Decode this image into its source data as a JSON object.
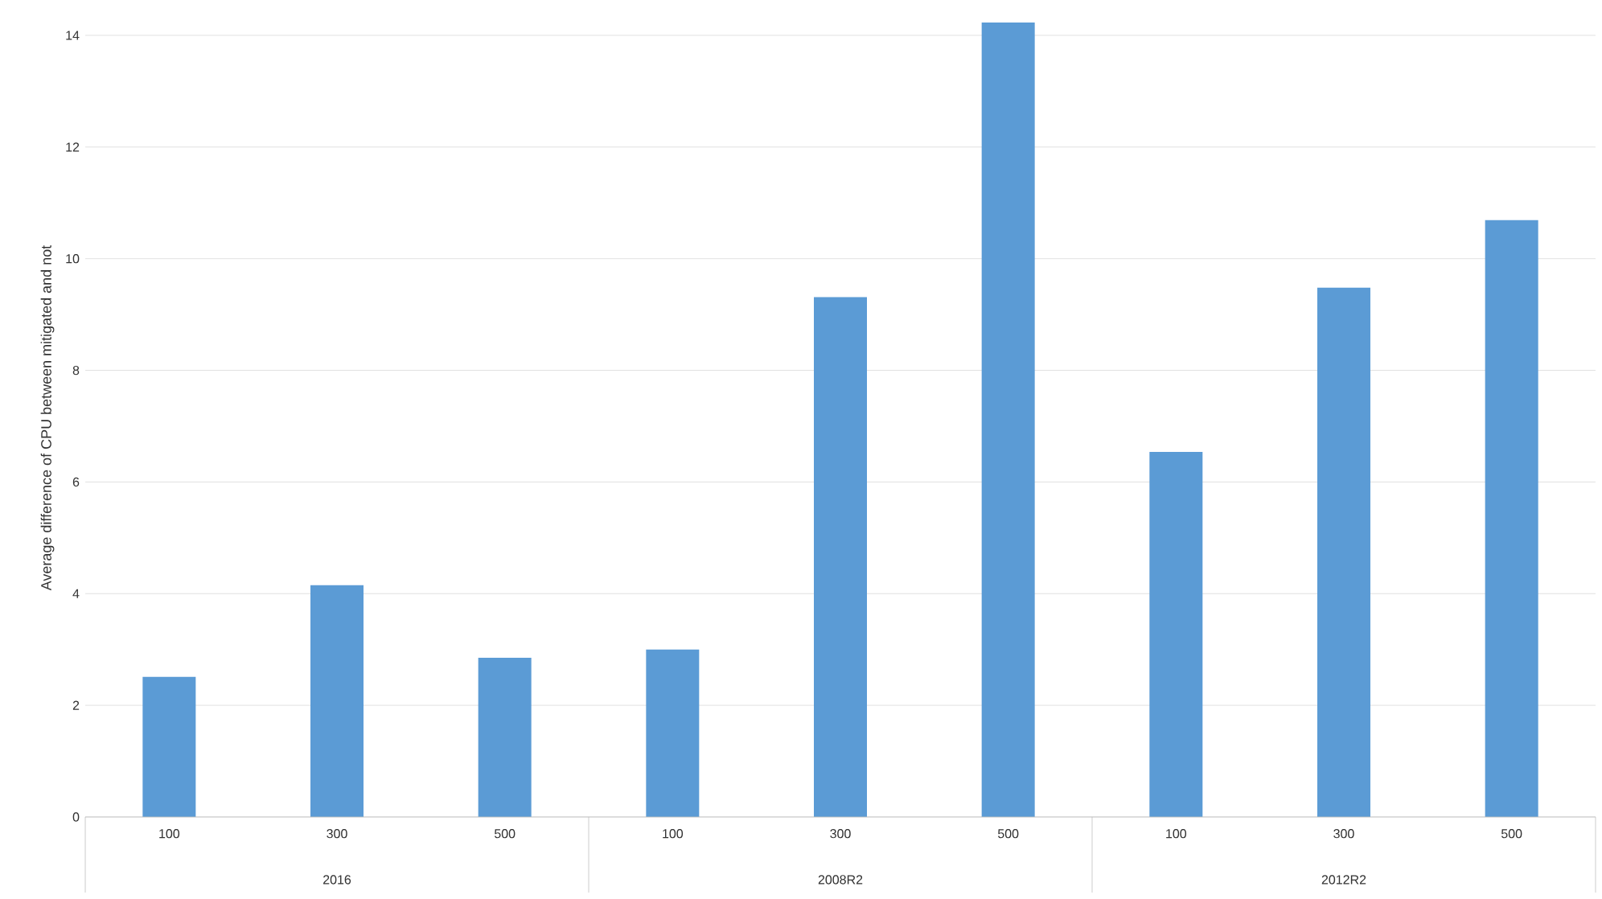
{
  "chart_data": {
    "type": "bar",
    "ylabel": "Average difference of CPU between mitigated and not",
    "categories": [
      "100",
      "300",
      "500",
      "100",
      "300",
      "500",
      "100",
      "300",
      "500"
    ],
    "values": [
      2.51,
      4.15,
      2.85,
      3.0,
      9.31,
      14.23,
      6.54,
      9.48,
      10.69
    ],
    "color": "#5b9bd5",
    "ylim": [
      0,
      14.3
    ],
    "yticks": [
      0,
      2,
      4,
      6,
      8,
      10,
      12,
      14
    ],
    "grid": "y",
    "annotations": [
      "2016",
      "2008R2",
      "2012R2"
    ]
  }
}
